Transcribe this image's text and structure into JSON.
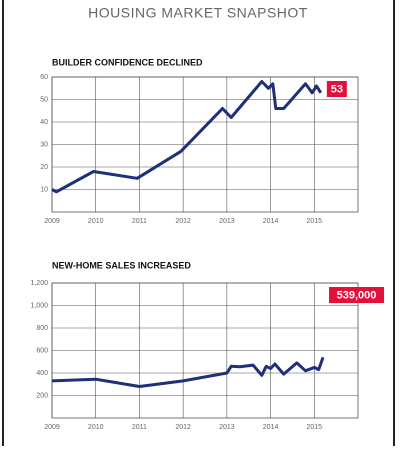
{
  "header": {
    "title": "HOUSING MARKET SNAPSHOT"
  },
  "chart_data": [
    {
      "type": "line",
      "title": "BUILDER CONFIDENCE DECLINED",
      "color": "#1f2f7a",
      "grid": true,
      "x": [
        2009.0,
        2009.1,
        2009.95,
        2010.95,
        2011.95,
        2012.9,
        2013.1,
        2013.8,
        2013.95,
        2014.05,
        2014.12,
        2014.3,
        2014.8,
        2014.95,
        2015.05,
        2015.15
      ],
      "values": [
        10,
        9,
        18,
        15,
        27,
        46,
        42,
        58,
        55,
        57,
        46,
        46,
        57,
        53,
        56,
        53
      ],
      "xlim": [
        2009,
        2016
      ],
      "xticks": [
        2009,
        2010,
        2011,
        2012,
        2013,
        2014,
        2015
      ],
      "ylim": [
        0,
        60
      ],
      "yticks": [
        10,
        20,
        30,
        40,
        50,
        60
      ]
    },
    {
      "type": "line",
      "title": "NEW-HOME SALES INCREASED",
      "color": "#1f2f7a",
      "grid": true,
      "x": [
        2009.0,
        2010.0,
        2011.0,
        2012.0,
        2013.0,
        2013.1,
        2013.3,
        2013.6,
        2013.8,
        2013.9,
        2014.0,
        2014.1,
        2014.3,
        2014.6,
        2014.8,
        2015.0,
        2015.1,
        2015.2
      ],
      "values": [
        330,
        345,
        280,
        330,
        400,
        460,
        455,
        470,
        380,
        460,
        440,
        480,
        390,
        490,
        420,
        450,
        430,
        539
      ],
      "value_labels": [
        null,
        null,
        null,
        null,
        null,
        null,
        null,
        null,
        null,
        null,
        null,
        null,
        null,
        null,
        null,
        null,
        null,
        "539,000"
      ],
      "xlim": [
        2009,
        2016
      ],
      "xticks": [
        2009,
        2010,
        2011,
        2012,
        2013,
        2014,
        2015
      ],
      "ylim": [
        0,
        1200
      ],
      "yticks": [
        200,
        400,
        600,
        800,
        {
          "value": 1000,
          "label": "1,000"
        },
        {
          "value": 1200,
          "label": "1,200"
        }
      ]
    }
  ]
}
